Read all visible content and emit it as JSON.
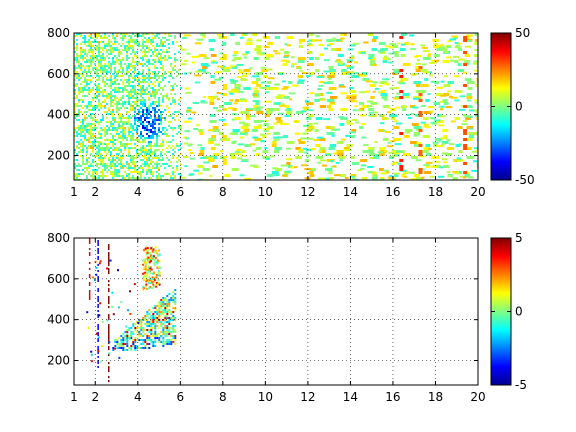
{
  "chart_data": [
    {
      "type": "heatmap",
      "title": "",
      "xlabel": "",
      "ylabel": "",
      "xlim": [
        1,
        20
      ],
      "ylim": [
        80,
        800
      ],
      "x_ticks": [
        1,
        2,
        4,
        6,
        8,
        10,
        12,
        14,
        16,
        18,
        20
      ],
      "x_tick_labels": [
        "1",
        "2",
        "4",
        "6",
        "8",
        "10",
        "12",
        "14",
        "16",
        "18",
        "20"
      ],
      "y_ticks": [
        200,
        400,
        600,
        800
      ],
      "y_tick_labels": [
        "200",
        "400",
        "600",
        "800"
      ],
      "grid": true,
      "colormap": "jet",
      "colorbar": {
        "range": [
          -50,
          50
        ],
        "ticks": [
          -50,
          0,
          50
        ],
        "tick_labels": [
          "-50",
          "0",
          "50"
        ]
      },
      "description_points": {
        "dense_region_x": [
          1,
          6
        ],
        "dense_region_y": [
          100,
          800
        ],
        "min_cluster": {
          "x": 4.5,
          "y": 370,
          "value": -30
        },
        "sparse_columns_x": [
          7,
          8,
          9,
          10,
          11,
          12,
          13,
          14,
          15,
          16,
          17,
          18,
          19,
          20
        ],
        "notable_columns": [
          {
            "x": 8.0,
            "value": 15
          },
          {
            "x": 16.3,
            "value": 35
          },
          {
            "x": 17.2,
            "value": 28
          },
          {
            "x": 19.3,
            "value": 30
          }
        ]
      }
    },
    {
      "type": "heatmap",
      "title": "",
      "xlabel": "",
      "ylabel": "",
      "xlim": [
        1,
        20
      ],
      "ylim": [
        80,
        800
      ],
      "x_ticks": [
        1,
        2,
        4,
        6,
        8,
        10,
        12,
        14,
        16,
        18,
        20
      ],
      "x_tick_labels": [
        "1",
        "2",
        "4",
        "6",
        "8",
        "10",
        "12",
        "14",
        "16",
        "18",
        "20"
      ],
      "y_ticks": [
        200,
        400,
        600,
        800
      ],
      "y_tick_labels": [
        "200",
        "400",
        "600",
        "800"
      ],
      "grid": true,
      "colormap": "jet",
      "colorbar": {
        "range": [
          -5,
          5
        ],
        "ticks": [
          -5,
          0,
          5
        ],
        "tick_labels": [
          "-5",
          "0",
          "5"
        ]
      },
      "description_points": {
        "dense_region_x": [
          2.8,
          5.8
        ],
        "dense_region_y": [
          240,
          550
        ],
        "upper_streaks_x": [
          4.2,
          5.0
        ],
        "upper_streaks_y": [
          550,
          760
        ],
        "vertical_lines": [
          {
            "x": 1.7,
            "y": [
              500,
              800
            ],
            "value": 4
          },
          {
            "x": 2.1,
            "y": [
              150,
              800
            ],
            "value": -4
          },
          {
            "x": 2.6,
            "y": [
              100,
              770
            ],
            "value": 5
          }
        ]
      }
    }
  ]
}
